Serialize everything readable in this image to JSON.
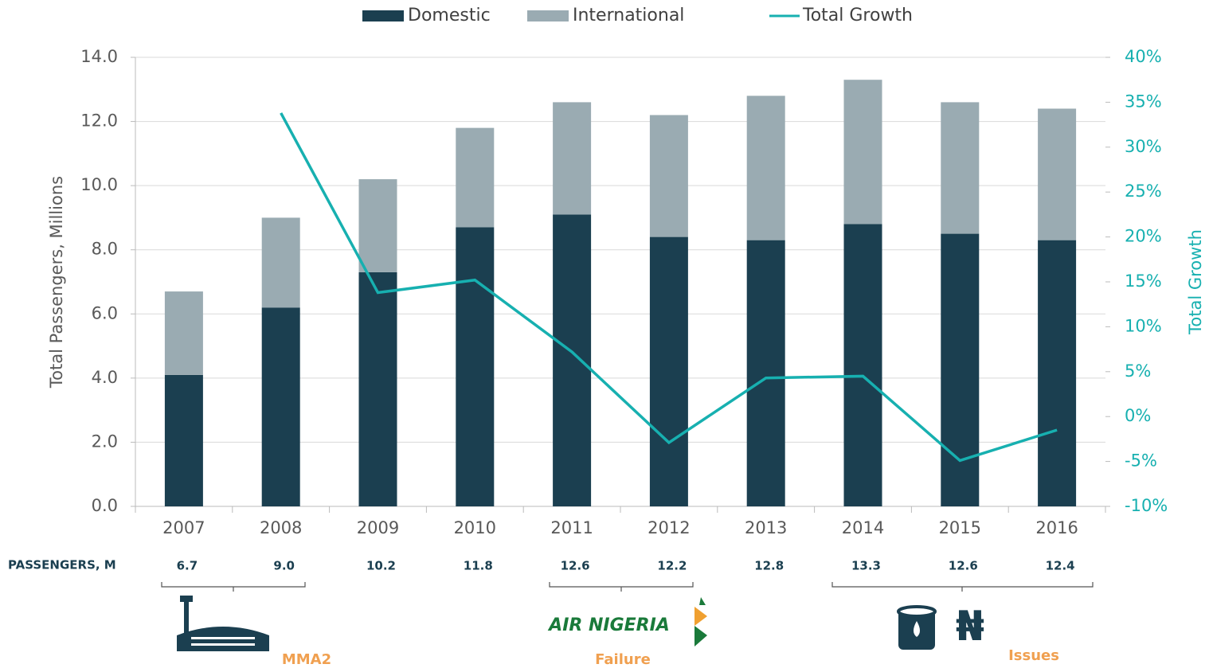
{
  "chart_data": {
    "type": "bar",
    "legend": "top",
    "y_label": "Total Passengers, Millions",
    "y2_label": "Total Growth",
    "categories": [
      "2007",
      "2008",
      "2009",
      "2010",
      "2011",
      "2012",
      "2013",
      "2014",
      "2015",
      "2016"
    ],
    "series": [
      {
        "name": "Domestic",
        "type": "bar",
        "color": "#1b3f50",
        "values": [
          4.1,
          6.2,
          7.3,
          8.7,
          9.1,
          8.4,
          8.3,
          8.8,
          8.5,
          8.3
        ]
      },
      {
        "name": "International",
        "type": "bar",
        "color": "#9aabb2",
        "values": [
          2.6,
          2.8,
          2.9,
          3.1,
          3.5,
          3.8,
          4.5,
          4.5,
          4.1,
          4.1
        ]
      },
      {
        "name": "Total Growth",
        "type": "line",
        "axis": "y2",
        "color": "#17b0b0",
        "values": [
          null,
          33.8,
          13.8,
          15.2,
          7.2,
          -2.9,
          4.3,
          4.5,
          -4.9,
          -1.5
        ]
      }
    ],
    "ylim": [
      0,
      14
    ],
    "yticks": [
      {
        "value": 0,
        "label": "0.0"
      },
      {
        "value": 2,
        "label": "2.0"
      },
      {
        "value": 4,
        "label": "4.0"
      },
      {
        "value": 6,
        "label": "6.0"
      },
      {
        "value": 8,
        "label": "8.0"
      },
      {
        "value": 10,
        "label": "10.0"
      },
      {
        "value": 12,
        "label": "12.0"
      },
      {
        "value": 14,
        "label": "14.0"
      }
    ],
    "y2lim": [
      -10,
      40
    ],
    "y2ticks": [
      {
        "value": -10,
        "label": "-10%"
      },
      {
        "value": -5,
        "label": "-5%"
      },
      {
        "value": 0,
        "label": "0%"
      },
      {
        "value": 5,
        "label": "5%"
      },
      {
        "value": 10,
        "label": "10%"
      },
      {
        "value": 15,
        "label": "15%"
      },
      {
        "value": 20,
        "label": "20%"
      },
      {
        "value": 25,
        "label": "25%"
      },
      {
        "value": 30,
        "label": "30%"
      },
      {
        "value": 35,
        "label": "35%"
      },
      {
        "value": 40,
        "label": "40%"
      }
    ],
    "grid": true,
    "passengers_label": "PASSENGERS, M",
    "passengers_totals": [
      "6.7",
      "9.0",
      "10.2",
      "11.8",
      "12.6",
      "12.2",
      "12.8",
      "13.3",
      "12.6",
      "12.4"
    ],
    "annotations": {
      "mma2": "MMA2",
      "airline": "AIR NIGERIA",
      "failure": "Failure",
      "issues": "Issues"
    }
  }
}
